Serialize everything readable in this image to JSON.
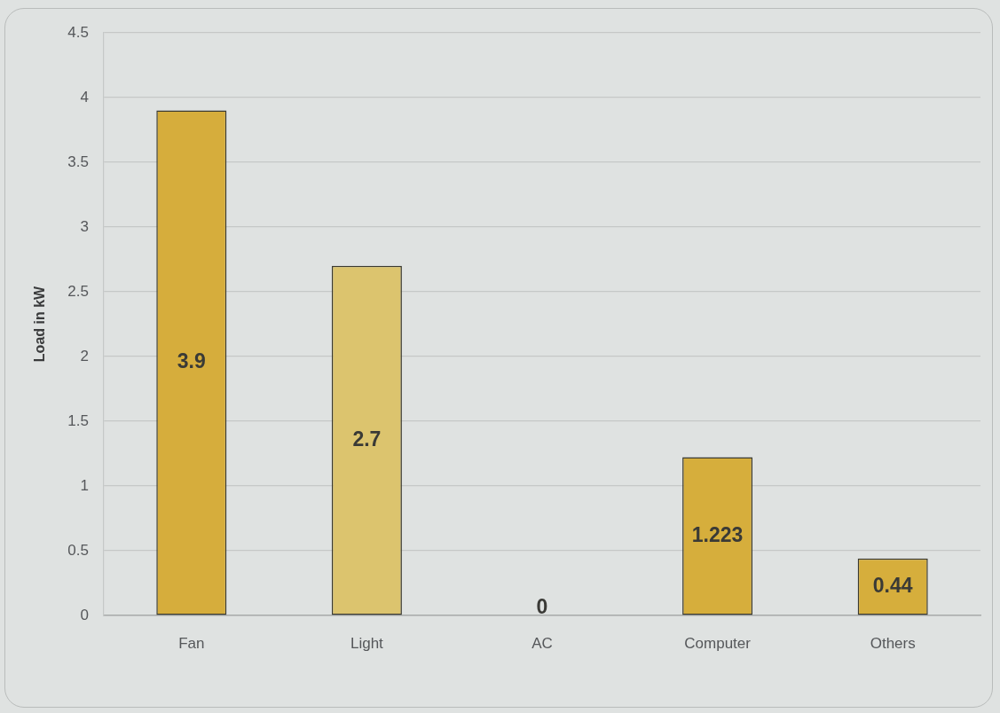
{
  "chart_data": {
    "type": "bar",
    "ylabel": "Load in kW",
    "categories": [
      "Fan",
      "Light",
      "AC",
      "Computer",
      "Others"
    ],
    "values": [
      3.9,
      2.7,
      0,
      1.223,
      0.44
    ],
    "colors": [
      "#d6ad3c",
      "#dcc46e",
      "#d6ad3c",
      "#d6ae3c",
      "#d6ae3c"
    ],
    "ylim": [
      0,
      4.5
    ],
    "yticks": [
      0,
      0.5,
      1,
      1.5,
      2,
      2.5,
      3,
      3.5,
      4,
      4.5
    ],
    "grid": "y",
    "data_labels": true
  }
}
